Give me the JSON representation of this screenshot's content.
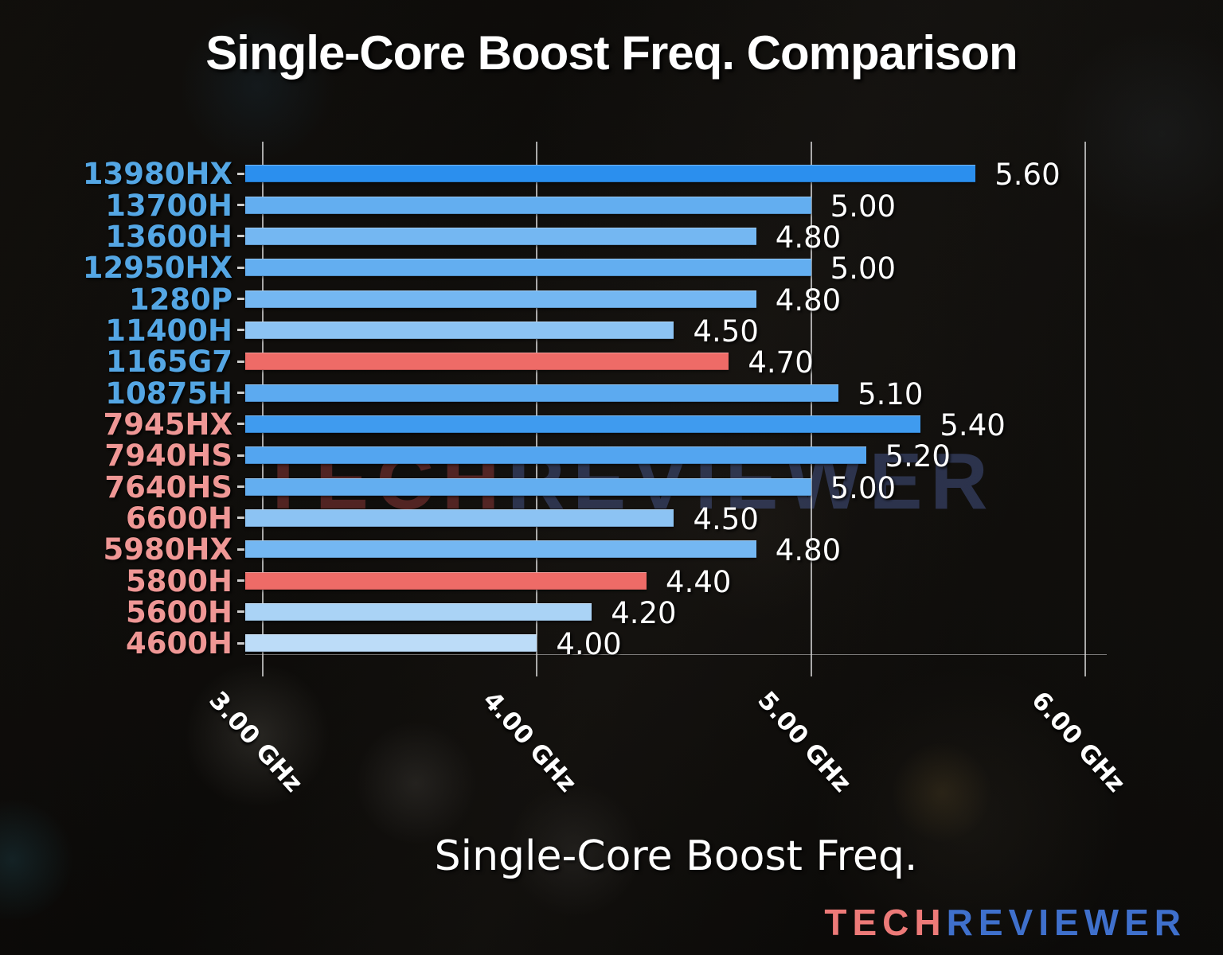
{
  "chart_data": {
    "type": "bar",
    "orientation": "horizontal",
    "title": "Single-Core Boost Freq. Comparison",
    "xlabel": "Single-Core Boost Freq.",
    "unit": "GHz",
    "xlim": [
      2.94,
      6.08
    ],
    "grid": true,
    "x_ticks": [
      {
        "value": 3,
        "label": "3.00 GHz"
      },
      {
        "value": 4,
        "label": "4.00 GHz"
      },
      {
        "value": 5,
        "label": "5.00 GHz"
      },
      {
        "value": 6,
        "label": "6.00 GHz"
      }
    ],
    "bars": [
      {
        "cpu": "13980HX",
        "value": 5.6,
        "value_label": "5.60",
        "bar_color": "#2b8fee",
        "name_color": "#54a6e4"
      },
      {
        "cpu": "13700H",
        "value": 5.0,
        "value_label": "5.00",
        "bar_color": "#63aef0",
        "name_color": "#54a6e4"
      },
      {
        "cpu": "13600H",
        "value": 4.8,
        "value_label": "4.80",
        "bar_color": "#74b7f2",
        "name_color": "#54a6e4"
      },
      {
        "cpu": "12950HX",
        "value": 5.0,
        "value_label": "5.00",
        "bar_color": "#63aef0",
        "name_color": "#54a6e4"
      },
      {
        "cpu": "1280P",
        "value": 4.8,
        "value_label": "4.80",
        "bar_color": "#74b7f2",
        "name_color": "#54a6e4"
      },
      {
        "cpu": "11400H",
        "value": 4.5,
        "value_label": "4.50",
        "bar_color": "#8cc3f3",
        "name_color": "#54a6e4"
      },
      {
        "cpu": "1165G7",
        "value": 4.7,
        "value_label": "4.70",
        "bar_color": "#ee6b67",
        "name_color": "#54a6e4"
      },
      {
        "cpu": "10875H",
        "value": 5.1,
        "value_label": "5.10",
        "bar_color": "#5caaf0",
        "name_color": "#54a6e4"
      },
      {
        "cpu": "7945HX",
        "value": 5.4,
        "value_label": "5.40",
        "bar_color": "#3f9bef",
        "name_color": "#ef9795"
      },
      {
        "cpu": "7940HS",
        "value": 5.2,
        "value_label": "5.20",
        "bar_color": "#53a5f0",
        "name_color": "#ef9795"
      },
      {
        "cpu": "7640HS",
        "value": 5.0,
        "value_label": "5.00",
        "bar_color": "#63aef0",
        "name_color": "#ef9795"
      },
      {
        "cpu": "6600H",
        "value": 4.5,
        "value_label": "4.50",
        "bar_color": "#8cc3f3",
        "name_color": "#ef9795"
      },
      {
        "cpu": "5980HX",
        "value": 4.8,
        "value_label": "4.80",
        "bar_color": "#74b7f2",
        "name_color": "#ef9795"
      },
      {
        "cpu": "5800H",
        "value": 4.4,
        "value_label": "4.40",
        "bar_color": "#ee6b67",
        "name_color": "#ef9795"
      },
      {
        "cpu": "5600H",
        "value": 4.2,
        "value_label": "4.20",
        "bar_color": "#aad3f6",
        "name_color": "#ef9795"
      },
      {
        "cpu": "4600H",
        "value": 4.0,
        "value_label": "4.00",
        "bar_color": "#bcdcf8",
        "name_color": "#ef9795"
      }
    ],
    "highlight_color": "#ee6b67",
    "legend": null
  },
  "watermark": {
    "part1": "TECH",
    "part2": "REVIEWER"
  },
  "logo": {
    "part1": "TECH",
    "part2": "REVIEWER",
    "color1": "#ed7a78",
    "color2": "#3f70cc"
  }
}
